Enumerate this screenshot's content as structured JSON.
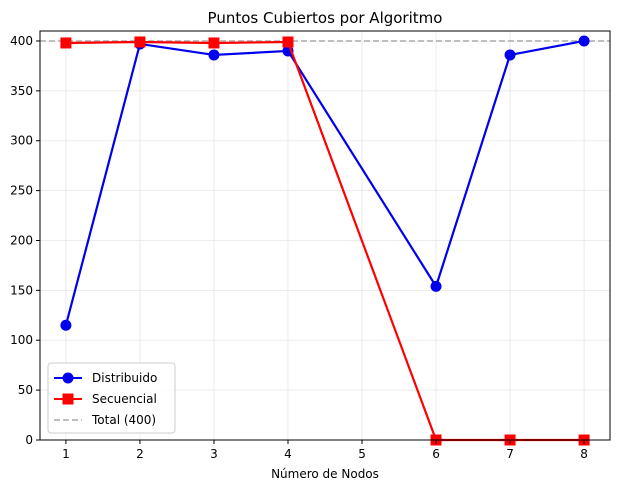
{
  "chart_data": {
    "type": "line",
    "title": "Puntos Cubiertos por Algoritmo",
    "xlabel": "Número de Nodos",
    "ylabel": "",
    "xlim": [
      0.65,
      8.35
    ],
    "ylim": [
      0,
      410
    ],
    "xticks": [
      1,
      2,
      3,
      4,
      5,
      6,
      7,
      8
    ],
    "yticks": [
      0,
      50,
      100,
      150,
      200,
      250,
      300,
      350,
      400
    ],
    "grid": true,
    "legend_position": "lower-left",
    "series": [
      {
        "name": "Distribuido",
        "color": "#0000ee",
        "marker": "circle",
        "x": [
          1,
          2,
          3,
          4,
          6,
          7,
          8
        ],
        "y": [
          115,
          397,
          386,
          390,
          154,
          386,
          400
        ]
      },
      {
        "name": "Secuencial",
        "color": "#ff0000",
        "marker": "square",
        "x": [
          1,
          2,
          3,
          4,
          6,
          7,
          8
        ],
        "y": [
          398,
          399,
          398,
          399,
          0,
          0,
          0
        ]
      }
    ],
    "reference_line": {
      "name": "Total (400)",
      "y": 400,
      "color": "#aaaaaa",
      "style": "dashed"
    }
  }
}
